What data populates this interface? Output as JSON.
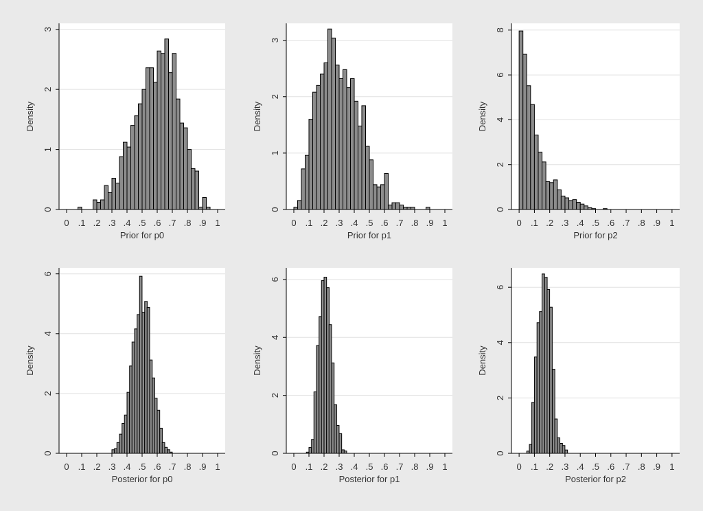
{
  "chart_data": [
    {
      "type": "bar",
      "title": "",
      "xlabel": "Prior for p0",
      "ylabel": "Density",
      "xlim": [
        -0.05,
        1.05
      ],
      "ylim": [
        0,
        3.1
      ],
      "xticks": [
        0,
        0.1,
        0.2,
        0.3,
        0.4,
        0.5,
        0.6,
        0.7,
        0.8,
        0.9,
        1
      ],
      "xtick_labels": [
        "0",
        ".1",
        ".2",
        ".3",
        ".4",
        ".5",
        ".6",
        ".7",
        ".8",
        ".9",
        "1"
      ],
      "yticks": [
        0,
        1,
        2,
        3
      ],
      "ytick_labels": [
        "0",
        "1",
        "2",
        "3"
      ],
      "grid": true,
      "bin_width": 0.025,
      "bins": [
        {
          "x": 0.075,
          "y": 0.04
        },
        {
          "x": 0.175,
          "y": 0.16
        },
        {
          "x": 0.2,
          "y": 0.12
        },
        {
          "x": 0.225,
          "y": 0.16
        },
        {
          "x": 0.25,
          "y": 0.4
        },
        {
          "x": 0.275,
          "y": 0.28
        },
        {
          "x": 0.3,
          "y": 0.52
        },
        {
          "x": 0.325,
          "y": 0.44
        },
        {
          "x": 0.35,
          "y": 0.88
        },
        {
          "x": 0.375,
          "y": 1.12
        },
        {
          "x": 0.4,
          "y": 1.04
        },
        {
          "x": 0.425,
          "y": 1.4
        },
        {
          "x": 0.45,
          "y": 1.56
        },
        {
          "x": 0.475,
          "y": 1.76
        },
        {
          "x": 0.5,
          "y": 2.0
        },
        {
          "x": 0.525,
          "y": 2.36
        },
        {
          "x": 0.55,
          "y": 2.36
        },
        {
          "x": 0.575,
          "y": 2.12
        },
        {
          "x": 0.6,
          "y": 2.64
        },
        {
          "x": 0.625,
          "y": 2.6
        },
        {
          "x": 0.65,
          "y": 2.84
        },
        {
          "x": 0.675,
          "y": 2.28
        },
        {
          "x": 0.7,
          "y": 2.6
        },
        {
          "x": 0.725,
          "y": 1.84
        },
        {
          "x": 0.75,
          "y": 1.44
        },
        {
          "x": 0.775,
          "y": 1.36
        },
        {
          "x": 0.8,
          "y": 1.0
        },
        {
          "x": 0.825,
          "y": 0.68
        },
        {
          "x": 0.85,
          "y": 0.64
        },
        {
          "x": 0.875,
          "y": 0.04
        },
        {
          "x": 0.9,
          "y": 0.2
        },
        {
          "x": 0.925,
          "y": 0.04
        }
      ]
    },
    {
      "type": "bar",
      "title": "",
      "xlabel": "Prior for p1",
      "ylabel": "Density",
      "xlim": [
        -0.05,
        1.05
      ],
      "ylim": [
        0,
        3.3
      ],
      "xticks": [
        0,
        0.1,
        0.2,
        0.3,
        0.4,
        0.5,
        0.6,
        0.7,
        0.8,
        0.9,
        1
      ],
      "xtick_labels": [
        "0",
        ".1",
        ".2",
        ".3",
        ".4",
        ".5",
        ".6",
        ".7",
        ".8",
        ".9",
        "1"
      ],
      "yticks": [
        0,
        1,
        2,
        3
      ],
      "ytick_labels": [
        "0",
        "1",
        "2",
        "3"
      ],
      "grid": true,
      "bin_width": 0.025,
      "bins": [
        {
          "x": 0.0,
          "y": 0.04
        },
        {
          "x": 0.025,
          "y": 0.16
        },
        {
          "x": 0.05,
          "y": 0.72
        },
        {
          "x": 0.075,
          "y": 0.96
        },
        {
          "x": 0.1,
          "y": 1.6
        },
        {
          "x": 0.125,
          "y": 2.08
        },
        {
          "x": 0.15,
          "y": 2.2
        },
        {
          "x": 0.175,
          "y": 2.4
        },
        {
          "x": 0.2,
          "y": 2.6
        },
        {
          "x": 0.225,
          "y": 3.2
        },
        {
          "x": 0.25,
          "y": 3.04
        },
        {
          "x": 0.275,
          "y": 2.56
        },
        {
          "x": 0.3,
          "y": 2.32
        },
        {
          "x": 0.325,
          "y": 2.48
        },
        {
          "x": 0.35,
          "y": 2.16
        },
        {
          "x": 0.375,
          "y": 2.32
        },
        {
          "x": 0.4,
          "y": 1.92
        },
        {
          "x": 0.425,
          "y": 1.48
        },
        {
          "x": 0.45,
          "y": 1.84
        },
        {
          "x": 0.475,
          "y": 1.12
        },
        {
          "x": 0.5,
          "y": 0.88
        },
        {
          "x": 0.525,
          "y": 0.44
        },
        {
          "x": 0.55,
          "y": 0.4
        },
        {
          "x": 0.575,
          "y": 0.44
        },
        {
          "x": 0.6,
          "y": 0.64
        },
        {
          "x": 0.625,
          "y": 0.08
        },
        {
          "x": 0.65,
          "y": 0.12
        },
        {
          "x": 0.675,
          "y": 0.12
        },
        {
          "x": 0.7,
          "y": 0.08
        },
        {
          "x": 0.725,
          "y": 0.04
        },
        {
          "x": 0.75,
          "y": 0.04
        },
        {
          "x": 0.775,
          "y": 0.04
        },
        {
          "x": 0.875,
          "y": 0.04
        }
      ]
    },
    {
      "type": "bar",
      "title": "",
      "xlabel": "Prior for p2",
      "ylabel": "Density",
      "xlim": [
        -0.05,
        1.05
      ],
      "ylim": [
        0,
        8.3
      ],
      "xticks": [
        0,
        0.1,
        0.2,
        0.3,
        0.4,
        0.5,
        0.6,
        0.7,
        0.8,
        0.9,
        1
      ],
      "xtick_labels": [
        "0",
        ".1",
        ".2",
        ".3",
        ".4",
        ".5",
        ".6",
        ".7",
        ".8",
        ".9",
        "1"
      ],
      "yticks": [
        0,
        2,
        4,
        6,
        8
      ],
      "ytick_labels": [
        "0",
        "2",
        "4",
        "6",
        "8"
      ],
      "grid": true,
      "bin_width": 0.025,
      "bins": [
        {
          "x": 0.0,
          "y": 7.96
        },
        {
          "x": 0.025,
          "y": 6.92
        },
        {
          "x": 0.05,
          "y": 5.52
        },
        {
          "x": 0.075,
          "y": 4.68
        },
        {
          "x": 0.1,
          "y": 3.32
        },
        {
          "x": 0.125,
          "y": 2.56
        },
        {
          "x": 0.15,
          "y": 2.12
        },
        {
          "x": 0.175,
          "y": 1.24
        },
        {
          "x": 0.2,
          "y": 1.2
        },
        {
          "x": 0.225,
          "y": 1.32
        },
        {
          "x": 0.25,
          "y": 0.88
        },
        {
          "x": 0.275,
          "y": 0.6
        },
        {
          "x": 0.3,
          "y": 0.52
        },
        {
          "x": 0.325,
          "y": 0.4
        },
        {
          "x": 0.35,
          "y": 0.44
        },
        {
          "x": 0.375,
          "y": 0.32
        },
        {
          "x": 0.4,
          "y": 0.24
        },
        {
          "x": 0.425,
          "y": 0.16
        },
        {
          "x": 0.45,
          "y": 0.08
        },
        {
          "x": 0.475,
          "y": 0.04
        },
        {
          "x": 0.55,
          "y": 0.04
        }
      ]
    },
    {
      "type": "bar",
      "title": "",
      "xlabel": "Posterior for p0",
      "ylabel": "Density",
      "xlim": [
        -0.05,
        1.05
      ],
      "ylim": [
        0,
        6.2
      ],
      "xticks": [
        0,
        0.1,
        0.2,
        0.3,
        0.4,
        0.5,
        0.6,
        0.7,
        0.8,
        0.9,
        1
      ],
      "xtick_labels": [
        "0",
        ".1",
        ".2",
        ".3",
        ".4",
        ".5",
        ".6",
        ".7",
        ".8",
        ".9",
        "1"
      ],
      "yticks": [
        0,
        2,
        4,
        6
      ],
      "ytick_labels": [
        "0",
        "2",
        "4",
        "6"
      ],
      "grid": true,
      "bin_width": 0.0167,
      "bins": [
        {
          "x": 0.3,
          "y": 0.12
        },
        {
          "x": 0.317,
          "y": 0.16
        },
        {
          "x": 0.333,
          "y": 0.36
        },
        {
          "x": 0.35,
          "y": 0.64
        },
        {
          "x": 0.367,
          "y": 1.0
        },
        {
          "x": 0.383,
          "y": 1.28
        },
        {
          "x": 0.4,
          "y": 2.04
        },
        {
          "x": 0.417,
          "y": 2.92
        },
        {
          "x": 0.433,
          "y": 3.72
        },
        {
          "x": 0.45,
          "y": 4.16
        },
        {
          "x": 0.467,
          "y": 4.64
        },
        {
          "x": 0.483,
          "y": 5.92
        },
        {
          "x": 0.5,
          "y": 4.72
        },
        {
          "x": 0.517,
          "y": 5.08
        },
        {
          "x": 0.533,
          "y": 4.88
        },
        {
          "x": 0.55,
          "y": 3.12
        },
        {
          "x": 0.567,
          "y": 2.52
        },
        {
          "x": 0.583,
          "y": 1.84
        },
        {
          "x": 0.6,
          "y": 1.44
        },
        {
          "x": 0.617,
          "y": 0.84
        },
        {
          "x": 0.633,
          "y": 0.36
        },
        {
          "x": 0.65,
          "y": 0.2
        },
        {
          "x": 0.667,
          "y": 0.12
        },
        {
          "x": 0.683,
          "y": 0.04
        }
      ]
    },
    {
      "type": "bar",
      "title": "",
      "xlabel": "Posterior for p1",
      "ylabel": "Density",
      "xlim": [
        -0.05,
        1.05
      ],
      "ylim": [
        0,
        6.4
      ],
      "xticks": [
        0,
        0.1,
        0.2,
        0.3,
        0.4,
        0.5,
        0.6,
        0.7,
        0.8,
        0.9,
        1
      ],
      "xtick_labels": [
        "0",
        ".1",
        ".2",
        ".3",
        ".4",
        ".5",
        ".6",
        ".7",
        ".8",
        ".9",
        "1"
      ],
      "yticks": [
        0,
        2,
        4,
        6
      ],
      "ytick_labels": [
        "0",
        "2",
        "4",
        "6"
      ],
      "grid": true,
      "bin_width": 0.0167,
      "bins": [
        {
          "x": 0.083,
          "y": 0.04
        },
        {
          "x": 0.1,
          "y": 0.2
        },
        {
          "x": 0.117,
          "y": 0.48
        },
        {
          "x": 0.133,
          "y": 2.12
        },
        {
          "x": 0.15,
          "y": 3.72
        },
        {
          "x": 0.167,
          "y": 4.72
        },
        {
          "x": 0.183,
          "y": 5.96
        },
        {
          "x": 0.2,
          "y": 6.08
        },
        {
          "x": 0.217,
          "y": 5.72
        },
        {
          "x": 0.233,
          "y": 4.44
        },
        {
          "x": 0.25,
          "y": 3.12
        },
        {
          "x": 0.267,
          "y": 1.68
        },
        {
          "x": 0.283,
          "y": 0.96
        },
        {
          "x": 0.3,
          "y": 0.68
        },
        {
          "x": 0.317,
          "y": 0.12
        },
        {
          "x": 0.333,
          "y": 0.08
        }
      ]
    },
    {
      "type": "bar",
      "title": "",
      "xlabel": "Posterior for p2",
      "ylabel": "Density",
      "xlim": [
        -0.05,
        1.05
      ],
      "ylim": [
        0,
        6.7
      ],
      "xticks": [
        0,
        0.1,
        0.2,
        0.3,
        0.4,
        0.5,
        0.6,
        0.7,
        0.8,
        0.9,
        1
      ],
      "xtick_labels": [
        "0",
        ".1",
        ".2",
        ".3",
        ".4",
        ".5",
        ".6",
        ".7",
        ".8",
        ".9",
        "1"
      ],
      "yticks": [
        0,
        2,
        4,
        6
      ],
      "ytick_labels": [
        "0",
        "2",
        "4",
        "6"
      ],
      "grid": true,
      "bin_width": 0.0167,
      "bins": [
        {
          "x": 0.05,
          "y": 0.08
        },
        {
          "x": 0.067,
          "y": 0.32
        },
        {
          "x": 0.083,
          "y": 1.84
        },
        {
          "x": 0.1,
          "y": 3.48
        },
        {
          "x": 0.117,
          "y": 4.72
        },
        {
          "x": 0.133,
          "y": 5.12
        },
        {
          "x": 0.15,
          "y": 6.48
        },
        {
          "x": 0.167,
          "y": 6.36
        },
        {
          "x": 0.183,
          "y": 5.92
        },
        {
          "x": 0.2,
          "y": 5.28
        },
        {
          "x": 0.217,
          "y": 3.04
        },
        {
          "x": 0.233,
          "y": 1.24
        },
        {
          "x": 0.25,
          "y": 0.56
        },
        {
          "x": 0.267,
          "y": 0.36
        },
        {
          "x": 0.283,
          "y": 0.28
        },
        {
          "x": 0.3,
          "y": 0.12
        }
      ]
    }
  ],
  "colors": {
    "background": "#eaeaea",
    "plot_region": "#ffffff",
    "bar_fill": "#8c8c8c",
    "bar_edge": "#000000",
    "grid": "#e0e0e0",
    "axis": "#000000",
    "text": "#333333"
  }
}
